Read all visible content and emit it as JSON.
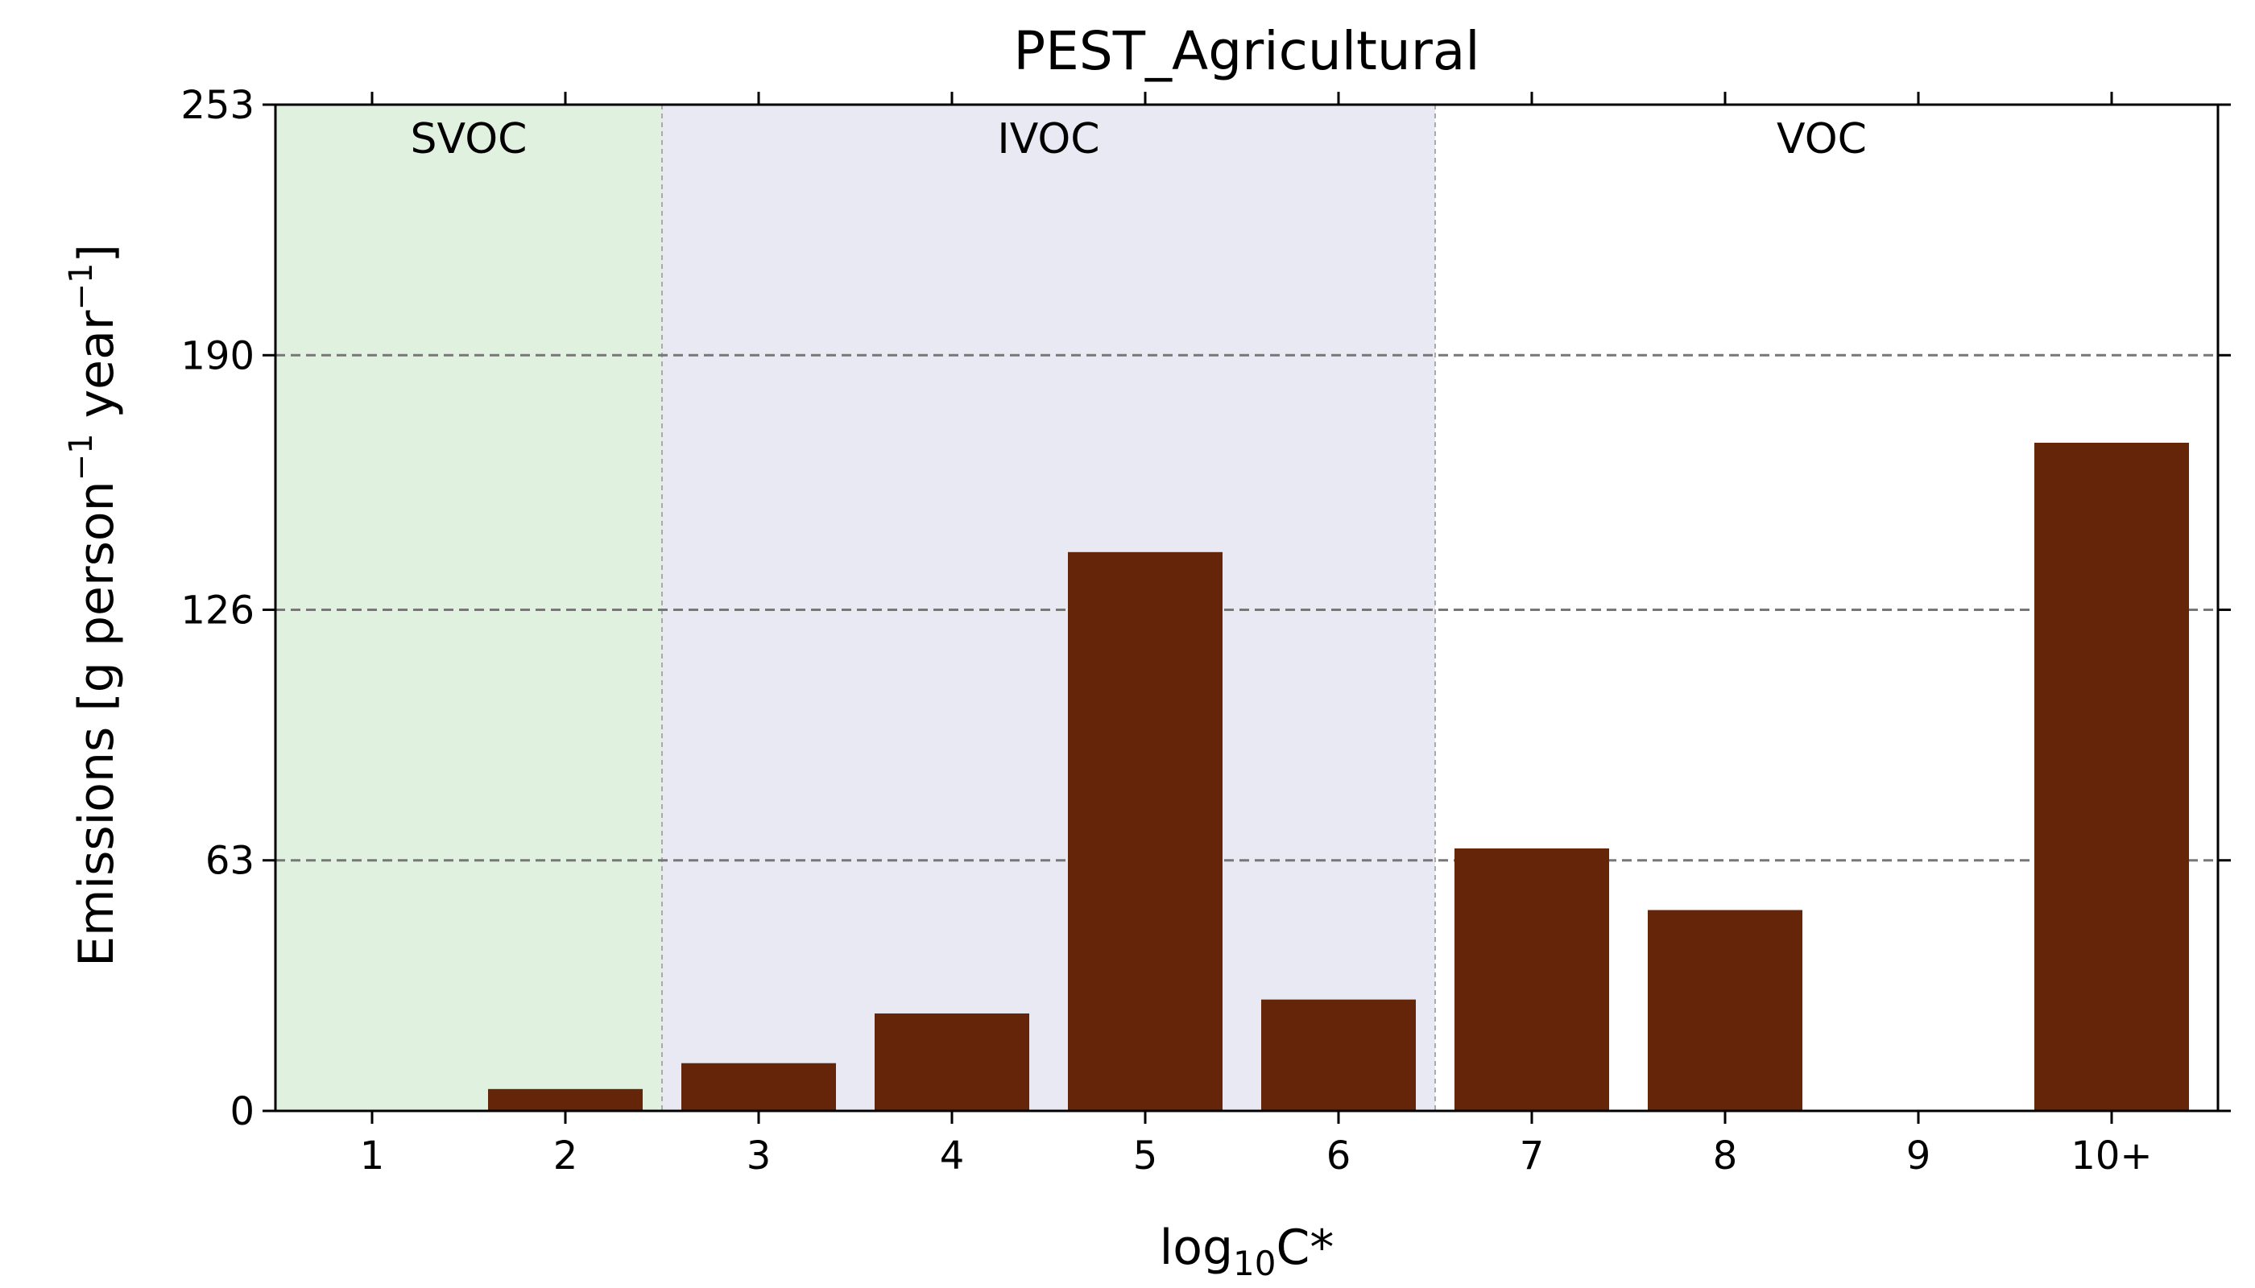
{
  "chart_data": {
    "type": "bar",
    "title": "PEST_Agricultural",
    "xlabel_main": "log",
    "xlabel_sub": "10",
    "xlabel_tail": "C*",
    "ylabel_parts": [
      "Emissions [g person",
      "−1",
      " year",
      "−1",
      "]"
    ],
    "categories": [
      "1",
      "2",
      "3",
      "4",
      "5",
      "6",
      "7",
      "8",
      "9",
      "10+"
    ],
    "series": [
      {
        "values": [
          0,
          5.5,
          12,
          24.5,
          140.5,
          28,
          66,
          50.5,
          0,
          168
        ]
      }
    ],
    "ylim": [
      0,
      253
    ],
    "yticks": [
      0,
      63,
      126,
      190,
      253
    ],
    "grid": "horizontal-dashed",
    "regions": [
      {
        "label": "SVOC",
        "from": 0.5,
        "to": 2.5,
        "color": "#e0f1df"
      },
      {
        "label": "IVOC",
        "from": 2.5,
        "to": 6.5,
        "color": "#e9e9f4"
      },
      {
        "label": "VOC",
        "from": 6.5,
        "to": 10.5,
        "color": "#ffffff"
      }
    ],
    "bar_color": "#652508"
  }
}
